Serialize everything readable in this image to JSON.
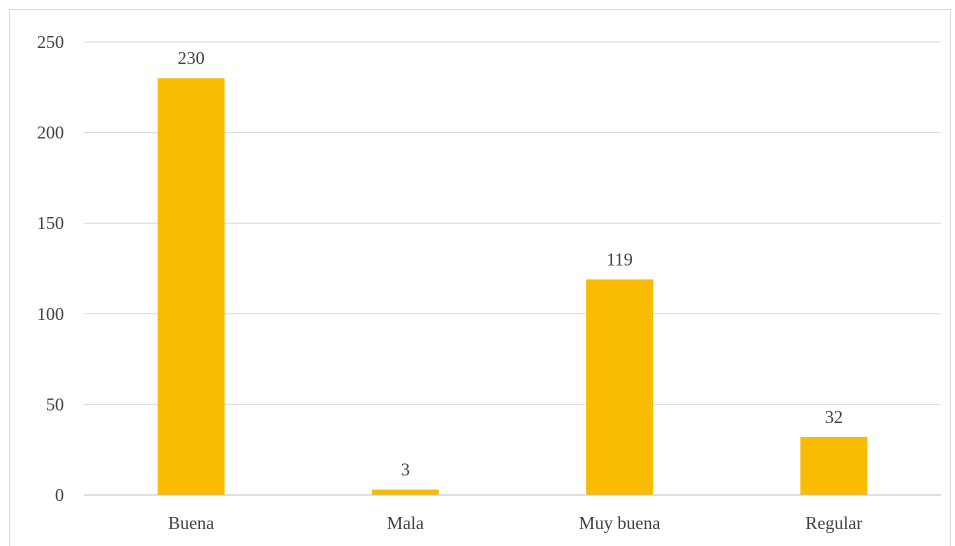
{
  "chart_data": {
    "type": "bar",
    "title": "",
    "xlabel": "",
    "ylabel": "",
    "categories": [
      "Buena",
      "Mala",
      "Muy buena",
      "Regular"
    ],
    "values": [
      230,
      3,
      119,
      32
    ],
    "data_labels": [
      "230",
      "3",
      "119",
      "32"
    ],
    "ylim": [
      0,
      250
    ],
    "yticks": [
      0,
      50,
      100,
      150,
      200,
      250
    ],
    "ytick_labels": [
      "0",
      "50",
      "100",
      "150",
      "200",
      "250"
    ],
    "grid": true,
    "legend": "none",
    "colors": {
      "bar": "#F9BC02",
      "grid": "#d9d9d9",
      "axis": "#bfbfbf",
      "text": "#404040"
    }
  }
}
